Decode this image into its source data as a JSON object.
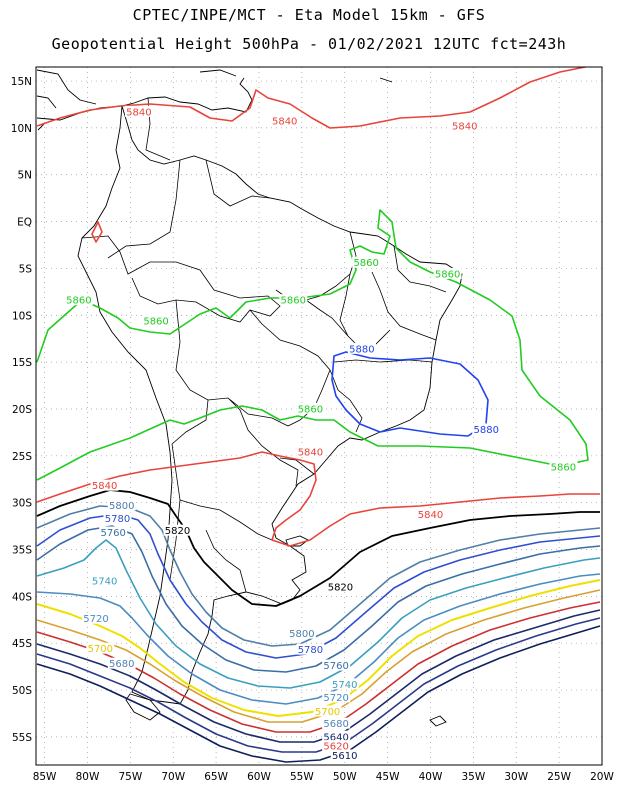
{
  "title_line1": "CPTEC/INPE/MCT -  Eta Model 15km - GFS",
  "title_line2": "Geopotential Height 500hPa - 01/02/2021 12UTC fct=243h",
  "axes": {
    "lon_labels": [
      "85W",
      "80W",
      "75W",
      "70W",
      "65W",
      "60W",
      "55W",
      "50W",
      "45W",
      "40W",
      "35W",
      "30W",
      "25W",
      "20W"
    ],
    "lat_labels": [
      "15N",
      "10N",
      "5N",
      "EQ",
      "5S",
      "10S",
      "15S",
      "20S",
      "25S",
      "30S",
      "35S",
      "40S",
      "45S",
      "50S",
      "55S"
    ],
    "lon_range": [
      -86,
      -20
    ],
    "lat_range": [
      16.5,
      -58
    ],
    "grid": "dotted"
  },
  "contour_labels": [
    {
      "text": "5840",
      "lon": -74,
      "lat": 11.5,
      "color": "#e8443a"
    },
    {
      "text": "5840",
      "lon": -57,
      "lat": 10.5,
      "color": "#e8443a"
    },
    {
      "text": "5840",
      "lon": -36,
      "lat": 10,
      "color": "#e8443a"
    },
    {
      "text": "5840",
      "lon": -54,
      "lat": -24.8,
      "color": "#e8443a"
    },
    {
      "text": "5840",
      "lon": -78,
      "lat": -28.4,
      "color": "#e8443a"
    },
    {
      "text": "5840",
      "lon": -40,
      "lat": -31.5,
      "color": "#e8443a"
    },
    {
      "text": "5860",
      "lon": -47.5,
      "lat": -4.6,
      "color": "#22cc22"
    },
    {
      "text": "5860",
      "lon": -38,
      "lat": -5.8,
      "color": "#22cc22"
    },
    {
      "text": "5860",
      "lon": -81,
      "lat": -8.6,
      "color": "#22cc22"
    },
    {
      "text": "5860",
      "lon": -56,
      "lat": -8.6,
      "color": "#22cc22"
    },
    {
      "text": "5860",
      "lon": -72,
      "lat": -10.8,
      "color": "#22cc22"
    },
    {
      "text": "5860",
      "lon": -54,
      "lat": -20.2,
      "color": "#22cc22"
    },
    {
      "text": "5860",
      "lon": -24.5,
      "lat": -26.4,
      "color": "#22cc22"
    },
    {
      "text": "5880",
      "lon": -48,
      "lat": -13.8,
      "color": "#2244ee"
    },
    {
      "text": "5880",
      "lon": -33.5,
      "lat": -22.4,
      "color": "#2244ee"
    },
    {
      "text": "5820",
      "lon": -69.5,
      "lat": -33.2,
      "color": "#000000"
    },
    {
      "text": "5820",
      "lon": -50.5,
      "lat": -39.2,
      "color": "#000000"
    },
    {
      "text": "5800",
      "lon": -76,
      "lat": -30.5,
      "color": "#4f7fa8"
    },
    {
      "text": "5800",
      "lon": -55,
      "lat": -44.2,
      "color": "#4f7fa8"
    },
    {
      "text": "5780",
      "lon": -76.5,
      "lat": -31.9,
      "color": "#2f4fd0"
    },
    {
      "text": "5780",
      "lon": -54,
      "lat": -45.9,
      "color": "#2f4fd0"
    },
    {
      "text": "5760",
      "lon": -77,
      "lat": -33.4,
      "color": "#3a6ea5"
    },
    {
      "text": "5760",
      "lon": -51,
      "lat": -47.6,
      "color": "#3a6ea5"
    },
    {
      "text": "5740",
      "lon": -78,
      "lat": -38.6,
      "color": "#3a9fbf"
    },
    {
      "text": "5740",
      "lon": -50,
      "lat": -49.6,
      "color": "#3a9fbf"
    },
    {
      "text": "5720",
      "lon": -79,
      "lat": -42.6,
      "color": "#4b8cc2"
    },
    {
      "text": "5720",
      "lon": -51,
      "lat": -51,
      "color": "#4b8cc2"
    },
    {
      "text": "5700",
      "lon": -78.5,
      "lat": -45.8,
      "color": "#e6c800"
    },
    {
      "text": "5700",
      "lon": -52,
      "lat": -52.5,
      "color": "#e6c800"
    },
    {
      "text": "5680",
      "lon": -76,
      "lat": -47.4,
      "color": "#5582b5"
    },
    {
      "text": "5680",
      "lon": -51,
      "lat": -53.8,
      "color": "#5582b5"
    },
    {
      "text": "5640",
      "lon": -51,
      "lat": -55.2,
      "color": "#1a2a6a"
    },
    {
      "text": "5620",
      "lon": -51,
      "lat": -56.2,
      "color": "#e8443a"
    },
    {
      "text": "5610",
      "lon": -50,
      "lat": -57.2,
      "color": "#0f1f5a"
    }
  ],
  "colors": {
    "h5840": "#e8443a",
    "h5860": "#22cc22",
    "h5880": "#2244ee",
    "h5820": "#000000",
    "h5800": "#4f7fa8",
    "h5780": "#2f4fd0",
    "h5760": "#3a6ea5",
    "h5740": "#3a9fbf",
    "h5720": "#4b8cc2",
    "h5700": "#f0e000",
    "h5680": "#d9a030",
    "h5660": "#cc3030",
    "h5640": "#1a2a6a",
    "h5620": "#2a3a8a",
    "h5600": "#0f1f5a"
  }
}
